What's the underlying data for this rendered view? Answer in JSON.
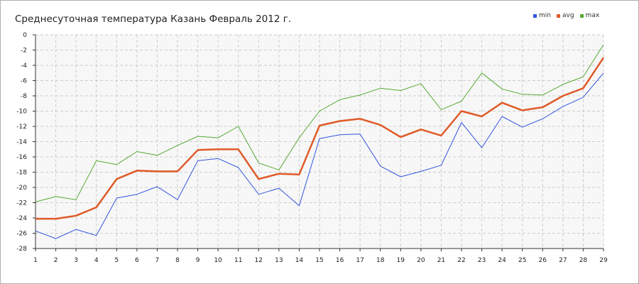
{
  "chart_data": {
    "type": "line",
    "title": "Среднесуточная температура Казань  Февраль 2012 г.",
    "xlabel": "",
    "ylabel": "",
    "x": [
      1,
      2,
      3,
      4,
      5,
      6,
      7,
      8,
      9,
      10,
      11,
      12,
      13,
      14,
      15,
      16,
      17,
      18,
      19,
      20,
      21,
      22,
      23,
      24,
      25,
      26,
      27,
      28,
      29
    ],
    "ylim": [
      -28,
      0
    ],
    "y_ticks": [
      0,
      -2,
      -4,
      -6,
      -8,
      -10,
      -12,
      -14,
      -16,
      -18,
      -20,
      -22,
      -24,
      -26,
      -28
    ],
    "grid": true,
    "legend_position": "top-right",
    "series": [
      {
        "name": "min",
        "color": "#3355dd",
        "width": 1,
        "values": [
          -25.7,
          -26.7,
          -25.5,
          -26.3,
          -21.4,
          -20.9,
          -19.9,
          -21.6,
          -16.5,
          -16.2,
          -17.4,
          -20.9,
          -20.1,
          -22.4,
          -13.6,
          -13.1,
          -13.0,
          -17.2,
          -18.6,
          -17.9,
          -17.1,
          -11.5,
          -14.8,
          -10.7,
          -12.1,
          -11.0,
          -9.4,
          -8.2,
          -5.0
        ]
      },
      {
        "name": "avg",
        "color": "#e05a28",
        "width": 2.5,
        "values": [
          -24.1,
          -24.1,
          -23.7,
          -22.6,
          -18.9,
          -17.8,
          -17.9,
          -17.9,
          -15.1,
          -15.0,
          -15.0,
          -18.9,
          -18.2,
          -18.3,
          -11.9,
          -11.3,
          -11.0,
          -11.8,
          -13.4,
          -12.4,
          -13.2,
          -10.0,
          -10.7,
          -8.9,
          -9.9,
          -9.5,
          -8.0,
          -7.0,
          -3.0
        ]
      },
      {
        "name": "max",
        "color": "#55aa33",
        "width": 1,
        "values": [
          -21.9,
          -21.2,
          -21.6,
          -16.5,
          -17.0,
          -15.3,
          -15.8,
          -14.5,
          -13.3,
          -13.5,
          -12.0,
          -16.8,
          -17.7,
          -13.5,
          -10.0,
          -8.5,
          -7.9,
          -7.0,
          -7.3,
          -6.4,
          -9.8,
          -8.7,
          -5.0,
          -7.1,
          -7.8,
          -7.9,
          -6.5,
          -5.5,
          -1.3
        ]
      }
    ]
  }
}
